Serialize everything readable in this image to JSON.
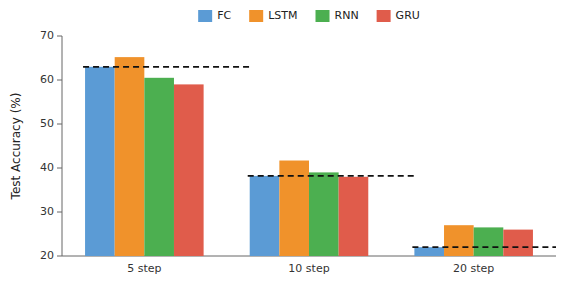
{
  "chart_data": {
    "type": "bar",
    "categories": [
      "5 step",
      "10 step",
      "20 step"
    ],
    "series": [
      {
        "name": "FC",
        "color": "#5b9bd5",
        "values": [
          63.0,
          38.2,
          22.0
        ]
      },
      {
        "name": "LSTM",
        "color": "#f0922b",
        "values": [
          65.2,
          41.7,
          27.0
        ]
      },
      {
        "name": "RNN",
        "color": "#4caf50",
        "values": [
          60.5,
          39.0,
          26.5
        ]
      },
      {
        "name": "GRU",
        "color": "#e05c4b",
        "values": [
          59.0,
          38.0,
          26.0
        ]
      }
    ],
    "reference_lines": [
      63.0,
      38.2,
      22.0
    ],
    "ylabel": "Test Accuracy (%)",
    "ylim": [
      20,
      70
    ],
    "yticks": [
      20,
      30,
      40,
      50,
      60,
      70
    ],
    "grid": false,
    "legend": "top"
  }
}
